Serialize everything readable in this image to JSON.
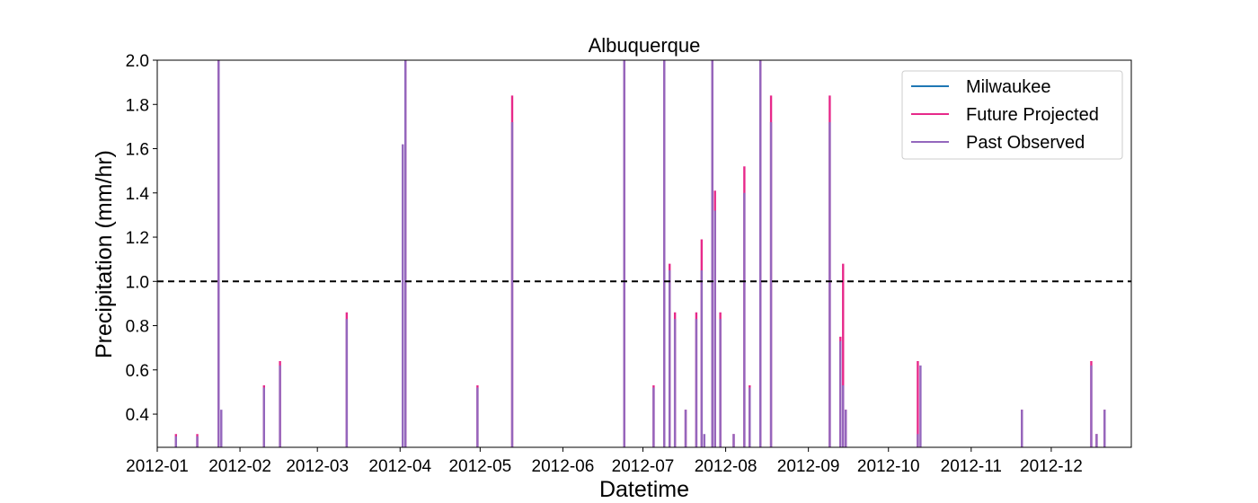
{
  "chart_data": {
    "type": "line",
    "title": "Albuquerque",
    "xlabel": "Datetime",
    "ylabel": "Precipitation (mm/hr)",
    "xlim": [
      "2012-01-01",
      "2012-12-31"
    ],
    "ylim": [
      0.25,
      2.0
    ],
    "x_ticks": [
      "2012-01",
      "2012-02",
      "2012-03",
      "2012-04",
      "2012-05",
      "2012-06",
      "2012-07",
      "2012-08",
      "2012-09",
      "2012-10",
      "2012-11",
      "2012-12"
    ],
    "y_ticks": [
      0.4,
      0.6,
      0.8,
      1.0,
      1.2,
      1.4,
      1.6,
      1.8,
      2.0
    ],
    "y_tick_labels": [
      "0.4",
      "0.6",
      "0.8",
      "1.0",
      "1.2",
      "1.4",
      "1.6",
      "1.8",
      "2.0"
    ],
    "grid": false,
    "legend_position": "top-right",
    "threshold": {
      "value": 1.0,
      "style": "dashed",
      "color": "#000000"
    },
    "series": [
      {
        "name": "Milwaukee",
        "color": "#1f77b4",
        "points": []
      },
      {
        "name": "Future Projected",
        "color": "#e7298a",
        "points": [
          [
            "2012-01-08",
            0.31
          ],
          [
            "2012-01-16",
            0.31
          ],
          [
            "2012-01-24",
            2.0
          ],
          [
            "2012-02-10",
            0.53
          ],
          [
            "2012-02-16",
            0.64
          ],
          [
            "2012-03-12",
            0.86
          ],
          [
            "2012-04-03",
            2.0
          ],
          [
            "2012-04-30",
            0.53
          ],
          [
            "2012-05-13",
            1.84
          ],
          [
            "2012-06-24",
            2.0
          ],
          [
            "2012-07-05",
            0.53
          ],
          [
            "2012-07-09",
            2.0
          ],
          [
            "2012-07-11",
            1.08
          ],
          [
            "2012-07-13",
            0.86
          ],
          [
            "2012-07-17",
            0.42
          ],
          [
            "2012-07-21",
            0.86
          ],
          [
            "2012-07-23",
            1.19
          ],
          [
            "2012-07-27",
            2.0
          ],
          [
            "2012-07-28",
            1.41
          ],
          [
            "2012-07-30",
            0.86
          ],
          [
            "2012-08-04",
            0.31
          ],
          [
            "2012-08-08",
            1.52
          ],
          [
            "2012-08-10",
            0.53
          ],
          [
            "2012-08-14",
            2.0
          ],
          [
            "2012-08-18",
            1.84
          ],
          [
            "2012-09-09",
            1.84
          ],
          [
            "2012-09-13",
            0.75
          ],
          [
            "2012-09-14",
            1.08
          ],
          [
            "2012-09-15",
            0.42
          ],
          [
            "2012-10-12",
            0.64
          ],
          [
            "2012-11-20",
            0.42
          ],
          [
            "2012-12-16",
            0.64
          ],
          [
            "2012-12-18",
            0.31
          ],
          [
            "2012-12-21",
            0.42
          ]
        ]
      },
      {
        "name": "Past Observed",
        "color": "#9467bd",
        "points": [
          [
            "2012-01-08",
            0.3
          ],
          [
            "2012-01-16",
            0.3
          ],
          [
            "2012-01-24",
            2.0
          ],
          [
            "2012-01-25",
            0.42
          ],
          [
            "2012-02-10",
            0.52
          ],
          [
            "2012-02-16",
            0.62
          ],
          [
            "2012-03-12",
            0.83
          ],
          [
            "2012-04-02",
            1.62
          ],
          [
            "2012-04-03",
            2.0
          ],
          [
            "2012-04-30",
            0.52
          ],
          [
            "2012-05-13",
            1.72
          ],
          [
            "2012-06-24",
            2.0
          ],
          [
            "2012-07-05",
            0.52
          ],
          [
            "2012-07-09",
            2.0
          ],
          [
            "2012-07-11",
            1.05
          ],
          [
            "2012-07-13",
            0.83
          ],
          [
            "2012-07-17",
            0.42
          ],
          [
            "2012-07-21",
            0.83
          ],
          [
            "2012-07-23",
            1.05
          ],
          [
            "2012-07-24",
            0.31
          ],
          [
            "2012-07-27",
            2.0
          ],
          [
            "2012-07-28",
            1.32
          ],
          [
            "2012-07-30",
            0.83
          ],
          [
            "2012-08-04",
            0.31
          ],
          [
            "2012-08-08",
            1.4
          ],
          [
            "2012-08-10",
            0.52
          ],
          [
            "2012-08-14",
            2.0
          ],
          [
            "2012-08-18",
            1.72
          ],
          [
            "2012-09-09",
            1.72
          ],
          [
            "2012-09-13",
            0.73
          ],
          [
            "2012-09-14",
            0.53
          ],
          [
            "2012-09-15",
            0.42
          ],
          [
            "2012-10-12",
            0.31
          ],
          [
            "2012-10-13",
            0.62
          ],
          [
            "2012-11-20",
            0.42
          ],
          [
            "2012-12-16",
            0.62
          ],
          [
            "2012-12-18",
            0.31
          ],
          [
            "2012-12-21",
            0.42
          ]
        ]
      }
    ]
  }
}
